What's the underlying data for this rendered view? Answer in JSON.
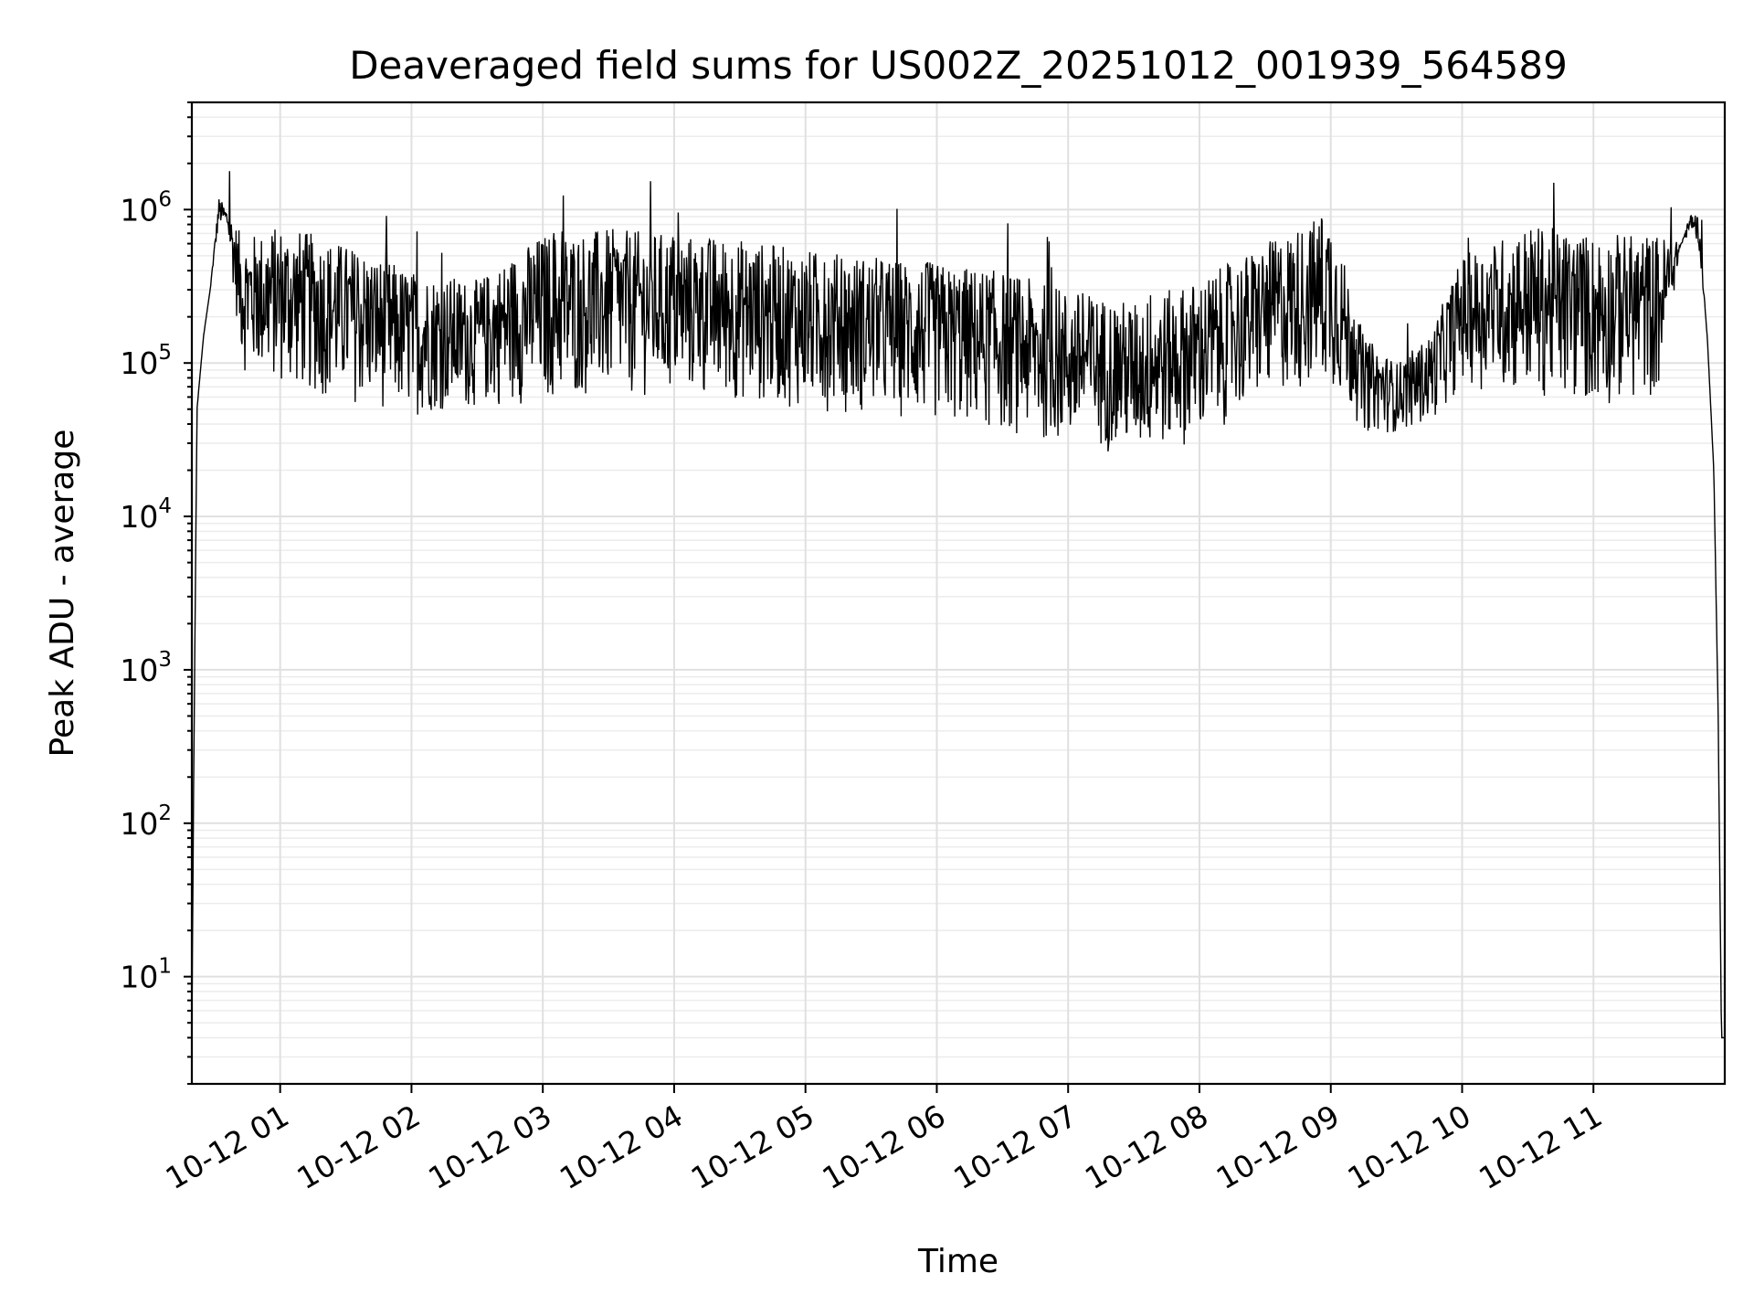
{
  "chart_data": {
    "type": "line",
    "title": "Deaveraged field sums for US002Z_20251012_001939_564589",
    "xlabel": "Time",
    "ylabel": "Peak ADU - average",
    "yscale": "log",
    "ylim": [
      2,
      5000000
    ],
    "xlim": [
      "2025-10-12T00:19:39",
      "2025-10-12T12:00:00"
    ],
    "grid": "on (major and minor)",
    "line_color": "#000000",
    "x_ticks": [
      "10-12 01",
      "10-12 02",
      "10-12 03",
      "10-12 04",
      "10-12 05",
      "10-12 06",
      "10-12 07",
      "10-12 08",
      "10-12 09",
      "10-12 10",
      "10-12 11"
    ],
    "y_ticks": [
      {
        "value": 10,
        "base": "10",
        "exp": "1"
      },
      {
        "value": 100,
        "base": "10",
        "exp": "2"
      },
      {
        "value": 1000,
        "base": "10",
        "exp": "3"
      },
      {
        "value": 10000,
        "base": "10",
        "exp": "4"
      },
      {
        "value": 100000,
        "base": "10",
        "exp": "5"
      },
      {
        "value": 1000000,
        "base": "10",
        "exp": "6"
      }
    ],
    "series": [
      {
        "x": [
          "2025-10-12T00:19:39",
          "2025-10-12T00:20:30",
          "2025-10-12T00:22:00",
          "2025-10-12T00:25:00",
          "2025-10-12T00:28:00",
          "2025-10-12T00:32:00",
          "2025-10-12T00:36:00",
          "2025-10-12T00:40:00",
          "2025-10-12T00:43:00",
          "2025-10-12T00:45:00",
          "2025-10-12T00:50:00",
          "2025-10-12T01:00:00",
          "2025-10-12T01:15:00",
          "2025-10-12T01:30:00",
          "2025-10-12T01:45:00",
          "2025-10-12T02:00:00",
          "2025-10-12T02:30:00",
          "2025-10-12T03:00:00",
          "2025-10-12T03:30:00",
          "2025-10-12T04:00:00",
          "2025-10-12T04:30:00",
          "2025-10-12T05:00:00",
          "2025-10-12T05:30:00",
          "2025-10-12T06:00:00",
          "2025-10-12T06:30:00",
          "2025-10-12T07:00:00",
          "2025-10-12T07:30:00",
          "2025-10-12T08:00:00",
          "2025-10-12T08:30:00",
          "2025-10-12T09:00:00",
          "2025-10-12T09:15:00",
          "2025-10-12T09:30:00",
          "2025-10-12T09:45:00",
          "2025-10-12T10:00:00",
          "2025-10-12T10:30:00",
          "2025-10-12T11:00:00",
          "2025-10-12T11:30:00",
          "2025-10-12T11:40:00",
          "2025-10-12T11:45:00",
          "2025-10-12T11:48:00",
          "2025-10-12T11:52:00",
          "2025-10-12T11:55:00",
          "2025-10-12T11:57:00",
          "2025-10-12T11:58:30",
          "2025-10-12T12:00:00"
        ],
        "low": [
          4,
          200,
          50000,
          150000,
          300000,
          800000,
          700000,
          200000,
          90000,
          80000,
          80000,
          70000,
          60000,
          55000,
          50000,
          45000,
          50000,
          55000,
          60000,
          60000,
          55000,
          50000,
          45000,
          40000,
          35000,
          28000,
          25000,
          30000,
          60000,
          70000,
          35000,
          35000,
          40000,
          70000,
          60000,
          50000,
          60000,
          600000,
          700000,
          600000,
          150000,
          20000,
          500,
          4,
          4
        ],
        "high": [
          4,
          200,
          50000,
          150000,
          300000,
          1200000,
          1000000,
          800000,
          650000,
          700000,
          700000,
          800000,
          700000,
          600000,
          500000,
          400000,
          350000,
          700000,
          750000,
          700000,
          650000,
          550000,
          500000,
          450000,
          400000,
          300000,
          250000,
          350000,
          600000,
          1000000,
          150000,
          100000,
          150000,
          500000,
          800000,
          700000,
          700000,
          600000,
          1000000,
          900000,
          150000,
          20000,
          500,
          4,
          4
        ]
      }
    ]
  }
}
